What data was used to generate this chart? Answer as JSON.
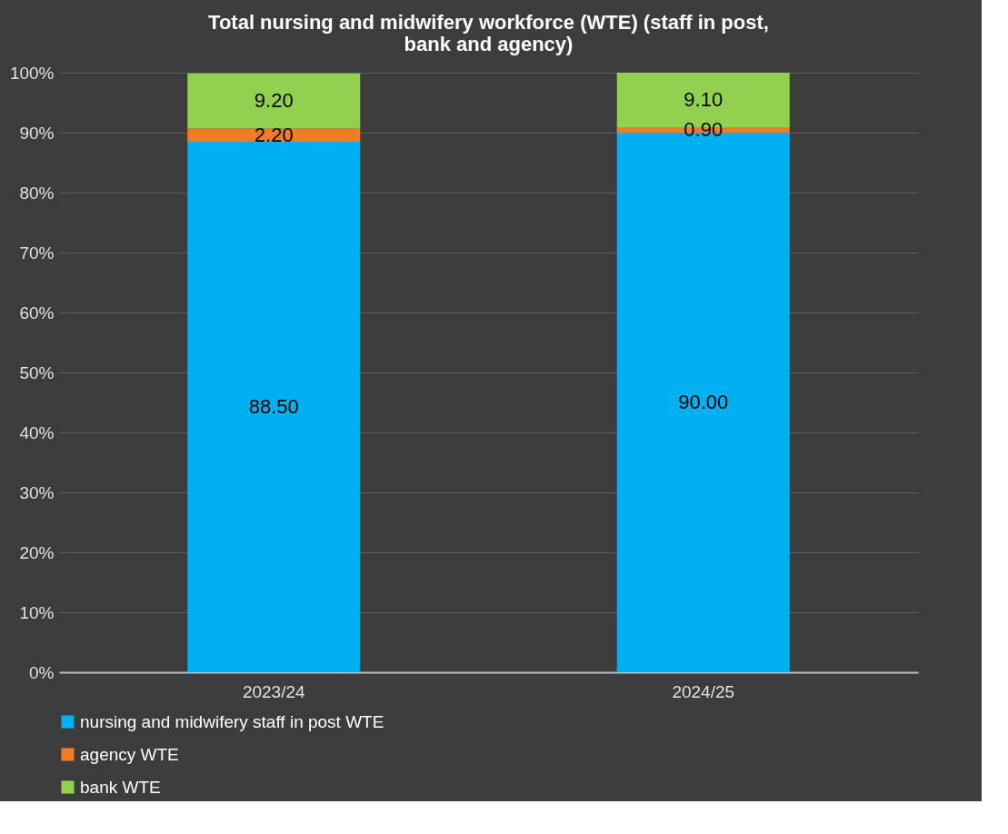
{
  "chart_data": {
    "type": "bar",
    "title": "Total nursing and midwifery workforce (WTE) (staff in post, bank and agency)",
    "categories": [
      "2023/24",
      "2024/25"
    ],
    "stacked": true,
    "series": [
      {
        "name": "nursing and midwifery staff in post WTE",
        "color": "#00b0f0",
        "values": [
          88.5,
          90.0
        ],
        "value_labels": [
          "88.50",
          "90.00"
        ]
      },
      {
        "name": "agency WTE",
        "color": "#f07c28",
        "values": [
          2.2,
          0.9
        ],
        "value_labels": [
          "2.20",
          "0.90"
        ]
      },
      {
        "name": "bank WTE",
        "color": "#92d050",
        "values": [
          9.2,
          9.1
        ],
        "value_labels": [
          "9.20",
          "9.10"
        ]
      }
    ],
    "ylim": [
      0,
      100
    ],
    "yticks": [
      {
        "value": 0,
        "label": "0%"
      },
      {
        "value": 10,
        "label": "10%"
      },
      {
        "value": 20,
        "label": "20%"
      },
      {
        "value": 30,
        "label": "30%"
      },
      {
        "value": 40,
        "label": "40%"
      },
      {
        "value": 50,
        "label": "50%"
      },
      {
        "value": 60,
        "label": "60%"
      },
      {
        "value": 70,
        "label": "70%"
      },
      {
        "value": 80,
        "label": "80%"
      },
      {
        "value": 90,
        "label": "90%"
      },
      {
        "value": 100,
        "label": "100%"
      }
    ],
    "grid": "y",
    "legend": "bottom"
  }
}
